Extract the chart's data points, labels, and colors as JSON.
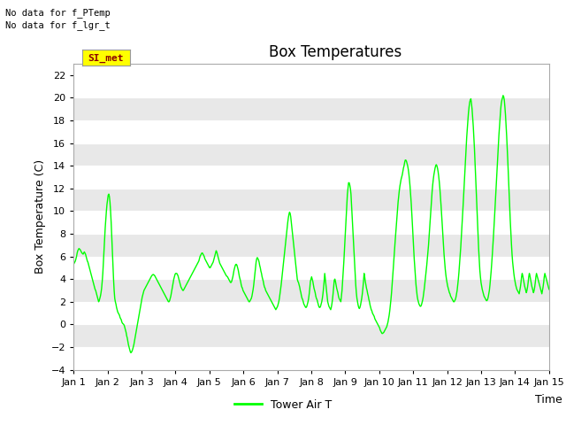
{
  "title": "Box Temperatures",
  "xlabel": "Time",
  "ylabel": "Box Temperature (C)",
  "ylim": [
    -4,
    23
  ],
  "yticks": [
    -4,
    -2,
    0,
    2,
    4,
    6,
    8,
    10,
    12,
    14,
    16,
    18,
    20,
    22
  ],
  "xlim": [
    0,
    14
  ],
  "xtick_labels": [
    "Jan 1",
    "Jan 2",
    "Jan 3",
    "Jan 4",
    "Jan 5",
    "Jan 6",
    "Jan 7",
    "Jan 8",
    "Jan 9",
    "Jan 10",
    "Jan 11",
    "Jan 12",
    "Jan 13",
    "Jan 14",
    "Jan 15"
  ],
  "xtick_positions": [
    0,
    1,
    2,
    3,
    4,
    5,
    6,
    7,
    8,
    9,
    10,
    11,
    12,
    13,
    14
  ],
  "line_color": "#00FF00",
  "line_width": 1.0,
  "bg_color_light": "#EBEBEB",
  "bg_color_white": "#FFFFFF",
  "text_no_data1": "No data for f_PTemp",
  "text_no_data2": "No data for f_lgr_t",
  "legend_label": "Tower Air T",
  "si_met_label": "SI_met",
  "title_fontsize": 12,
  "axis_label_fontsize": 9,
  "tick_fontsize": 8,
  "y": [
    5.3,
    5.4,
    5.5,
    5.6,
    5.8,
    6.0,
    6.3,
    6.5,
    6.6,
    6.7,
    6.65,
    6.6,
    6.5,
    6.4,
    6.3,
    6.25,
    6.2,
    6.3,
    6.4,
    6.3,
    6.2,
    6.0,
    5.8,
    5.6,
    5.5,
    5.3,
    5.1,
    4.9,
    4.7,
    4.5,
    4.3,
    4.1,
    3.9,
    3.7,
    3.5,
    3.3,
    3.1,
    3.0,
    2.8,
    2.6,
    2.4,
    2.2,
    2.0,
    2.1,
    2.3,
    2.5,
    2.8,
    3.2,
    3.8,
    4.5,
    5.5,
    6.5,
    7.5,
    8.5,
    9.3,
    10.0,
    10.6,
    11.0,
    11.4,
    11.5,
    11.3,
    10.8,
    10.0,
    9.0,
    7.8,
    6.5,
    5.2,
    4.0,
    3.0,
    2.3,
    2.0,
    1.8,
    1.5,
    1.3,
    1.1,
    1.0,
    0.9,
    0.8,
    0.6,
    0.5,
    0.4,
    0.2,
    0.1,
    0.05,
    0.0,
    -0.1,
    -0.3,
    -0.5,
    -0.7,
    -1.0,
    -1.2,
    -1.5,
    -1.8,
    -2.0,
    -2.2,
    -2.4,
    -2.5,
    -2.45,
    -2.35,
    -2.2,
    -2.0,
    -1.8,
    -1.5,
    -1.2,
    -0.9,
    -0.6,
    -0.3,
    0.0,
    0.3,
    0.6,
    0.9,
    1.2,
    1.5,
    1.8,
    2.1,
    2.4,
    2.6,
    2.8,
    3.0,
    3.1,
    3.2,
    3.3,
    3.4,
    3.5,
    3.6,
    3.7,
    3.8,
    3.9,
    4.0,
    4.1,
    4.2,
    4.3,
    4.35,
    4.4,
    4.4,
    4.35,
    4.3,
    4.2,
    4.1,
    4.0,
    3.9,
    3.8,
    3.7,
    3.6,
    3.5,
    3.4,
    3.3,
    3.2,
    3.1,
    3.0,
    2.9,
    2.8,
    2.7,
    2.6,
    2.5,
    2.4,
    2.3,
    2.2,
    2.1,
    2.0,
    2.0,
    2.1,
    2.3,
    2.5,
    2.8,
    3.1,
    3.4,
    3.7,
    4.0,
    4.2,
    4.4,
    4.5,
    4.5,
    4.5,
    4.4,
    4.3,
    4.1,
    3.9,
    3.7,
    3.5,
    3.3,
    3.2,
    3.1,
    3.0,
    3.0,
    3.1,
    3.2,
    3.3,
    3.4,
    3.5,
    3.6,
    3.7,
    3.8,
    3.9,
    4.0,
    4.1,
    4.2,
    4.3,
    4.4,
    4.5,
    4.6,
    4.7,
    4.8,
    4.9,
    5.0,
    5.1,
    5.2,
    5.3,
    5.4,
    5.5,
    5.6,
    5.8,
    6.0,
    6.1,
    6.2,
    6.3,
    6.3,
    6.2,
    6.1,
    6.0,
    5.8,
    5.7,
    5.6,
    5.5,
    5.4,
    5.3,
    5.2,
    5.1,
    5.0,
    5.0,
    5.1,
    5.2,
    5.3,
    5.4,
    5.5,
    5.7,
    5.9,
    6.1,
    6.3,
    6.5,
    6.4,
    6.2,
    6.0,
    5.8,
    5.6,
    5.4,
    5.3,
    5.2,
    5.1,
    5.0,
    4.9,
    4.8,
    4.7,
    4.6,
    4.5,
    4.4,
    4.3,
    4.25,
    4.2,
    4.1,
    4.0,
    3.9,
    3.8,
    3.7,
    3.7,
    3.8,
    4.0,
    4.2,
    4.5,
    4.8,
    5.0,
    5.2,
    5.3,
    5.3,
    5.2,
    5.0,
    4.8,
    4.5,
    4.2,
    4.0,
    3.8,
    3.5,
    3.3,
    3.2,
    3.0,
    2.9,
    2.8,
    2.7,
    2.6,
    2.5,
    2.4,
    2.3,
    2.2,
    2.1,
    2.0,
    2.0,
    2.1,
    2.2,
    2.3,
    2.5,
    2.8,
    3.1,
    3.5,
    4.0,
    4.5,
    5.0,
    5.5,
    5.8,
    5.9,
    5.8,
    5.7,
    5.5,
    5.2,
    5.0,
    4.7,
    4.5,
    4.2,
    4.0,
    3.8,
    3.5,
    3.3,
    3.2,
    3.0,
    2.9,
    2.8,
    2.7,
    2.6,
    2.5,
    2.4,
    2.3,
    2.2,
    2.1,
    2.0,
    1.9,
    1.8,
    1.7,
    1.6,
    1.5,
    1.4,
    1.3,
    1.4,
    1.5,
    1.6,
    1.8,
    2.0,
    2.3,
    2.7,
    3.1,
    3.5,
    4.0,
    4.5,
    5.0,
    5.5,
    6.0,
    6.5,
    7.0,
    7.5,
    8.0,
    8.5,
    9.0,
    9.4,
    9.7,
    9.9,
    9.8,
    9.5,
    9.0,
    8.5,
    8.0,
    7.5,
    7.0,
    6.5,
    6.0,
    5.5,
    5.0,
    4.5,
    4.0,
    3.8,
    3.7,
    3.5,
    3.3,
    3.0,
    2.8,
    2.5,
    2.3,
    2.2,
    2.0,
    1.8,
    1.7,
    1.6,
    1.5,
    1.5,
    1.6,
    1.8,
    2.0,
    2.3,
    2.7,
    3.2,
    3.8,
    4.0,
    4.2,
    4.0,
    3.8,
    3.5,
    3.2,
    3.0,
    2.8,
    2.5,
    2.3,
    2.2,
    2.0,
    1.8,
    1.6,
    1.5,
    1.5,
    1.6,
    1.8,
    2.0,
    2.3,
    2.7,
    3.2,
    3.8,
    4.5,
    4.0,
    3.5,
    3.0,
    2.5,
    2.0,
    1.8,
    1.6,
    1.5,
    1.4,
    1.3,
    1.5,
    1.8,
    2.2,
    2.7,
    3.3,
    3.9,
    4.0,
    3.8,
    3.5,
    3.2,
    3.0,
    2.8,
    2.5,
    2.3,
    2.2,
    2.1,
    2.0,
    2.5,
    3.0,
    3.8,
    4.5,
    5.5,
    6.5,
    7.5,
    8.5,
    9.5,
    10.5,
    11.5,
    12.0,
    12.5,
    12.5,
    12.3,
    12.0,
    11.5,
    10.5,
    9.5,
    8.5,
    7.5,
    6.5,
    5.5,
    4.5,
    3.5,
    2.8,
    2.3,
    2.0,
    1.7,
    1.5,
    1.4,
    1.5,
    1.7,
    2.0,
    2.3,
    2.7,
    3.2,
    3.8,
    4.5,
    4.2,
    3.8,
    3.5,
    3.2,
    3.0,
    2.7,
    2.5,
    2.2,
    2.0,
    1.7,
    1.5,
    1.3,
    1.2,
    1.0,
    0.9,
    0.8,
    0.7,
    0.5,
    0.4,
    0.3,
    0.2,
    0.1,
    0.0,
    -0.1,
    -0.2,
    -0.3,
    -0.5,
    -0.6,
    -0.7,
    -0.8,
    -0.8,
    -0.75,
    -0.7,
    -0.6,
    -0.5,
    -0.4,
    -0.3,
    -0.2,
    0.0,
    0.2,
    0.5,
    0.8,
    1.2,
    1.7,
    2.2,
    2.8,
    3.5,
    4.2,
    5.0,
    5.8,
    6.5,
    7.3,
    8.0,
    8.8,
    9.5,
    10.2,
    10.8,
    11.3,
    11.8,
    12.2,
    12.5,
    12.8,
    13.0,
    13.2,
    13.5,
    13.8,
    14.0,
    14.3,
    14.5,
    14.5,
    14.4,
    14.2,
    14.0,
    13.7,
    13.3,
    12.8,
    12.2,
    11.5,
    10.7,
    9.8,
    8.8,
    7.8,
    6.8,
    5.8,
    5.0,
    4.2,
    3.5,
    3.0,
    2.5,
    2.2,
    2.0,
    1.8,
    1.7,
    1.6,
    1.6,
    1.7,
    1.9,
    2.1,
    2.4,
    2.8,
    3.2,
    3.7,
    4.2,
    4.7,
    5.2,
    5.8,
    6.4,
    7.0,
    7.8,
    8.6,
    9.5,
    10.3,
    11.0,
    11.7,
    12.3,
    12.8,
    13.2,
    13.5,
    13.8,
    14.0,
    14.1,
    14.0,
    13.8,
    13.5,
    13.1,
    12.6,
    12.0,
    11.3,
    10.5,
    9.7,
    8.8,
    7.9,
    7.0,
    6.2,
    5.5,
    4.9,
    4.4,
    4.0,
    3.7,
    3.4,
    3.2,
    3.0,
    2.8,
    2.7,
    2.5,
    2.4,
    2.3,
    2.2,
    2.1,
    2.0,
    2.0,
    2.1,
    2.2,
    2.4,
    2.7,
    3.0,
    3.5,
    4.0,
    4.6,
    5.3,
    6.0,
    6.8,
    7.7,
    8.6,
    9.5,
    10.5,
    11.5,
    12.5,
    13.5,
    14.5,
    15.5,
    16.5,
    17.3,
    18.0,
    18.7,
    19.2,
    19.6,
    19.8,
    19.9,
    19.5,
    19.0,
    18.3,
    17.5,
    16.5,
    15.5,
    14.3,
    13.0,
    11.7,
    10.3,
    9.0,
    7.8,
    6.7,
    5.7,
    4.8,
    4.2,
    3.7,
    3.4,
    3.1,
    2.9,
    2.7,
    2.5,
    2.4,
    2.3,
    2.2,
    2.1,
    2.1,
    2.2,
    2.4,
    2.7,
    3.0,
    3.5,
    4.1,
    4.7,
    5.4,
    6.2,
    7.0,
    7.9,
    8.8,
    9.8,
    10.8,
    11.8,
    12.8,
    13.8,
    14.8,
    15.8,
    16.7,
    17.5,
    18.3,
    19.0,
    19.5,
    19.8,
    20.0,
    20.2,
    20.1,
    19.8,
    19.2,
    18.5,
    17.6,
    16.6,
    15.5,
    14.3,
    13.0,
    11.7,
    10.4,
    9.2,
    8.1,
    7.1,
    6.2,
    5.5,
    5.0,
    4.5,
    4.1,
    3.8,
    3.5,
    3.3,
    3.1,
    3.0,
    2.9,
    2.8,
    2.7,
    3.0,
    3.3,
    3.7,
    4.2,
    4.5,
    4.3,
    4.0,
    3.7,
    3.4,
    3.2,
    3.0,
    2.8,
    3.0,
    3.3,
    3.7,
    4.2,
    4.5,
    4.3,
    4.0,
    3.7,
    3.4,
    3.2,
    3.0,
    2.8,
    3.0,
    3.3,
    3.7,
    4.2,
    4.5,
    4.3,
    4.1,
    3.9,
    3.7,
    3.5,
    3.3,
    3.1,
    2.9,
    2.7,
    3.0,
    3.3,
    3.7,
    4.2,
    4.5,
    4.3,
    4.1,
    3.9,
    3.7,
    3.5,
    3.3,
    3.1
  ]
}
